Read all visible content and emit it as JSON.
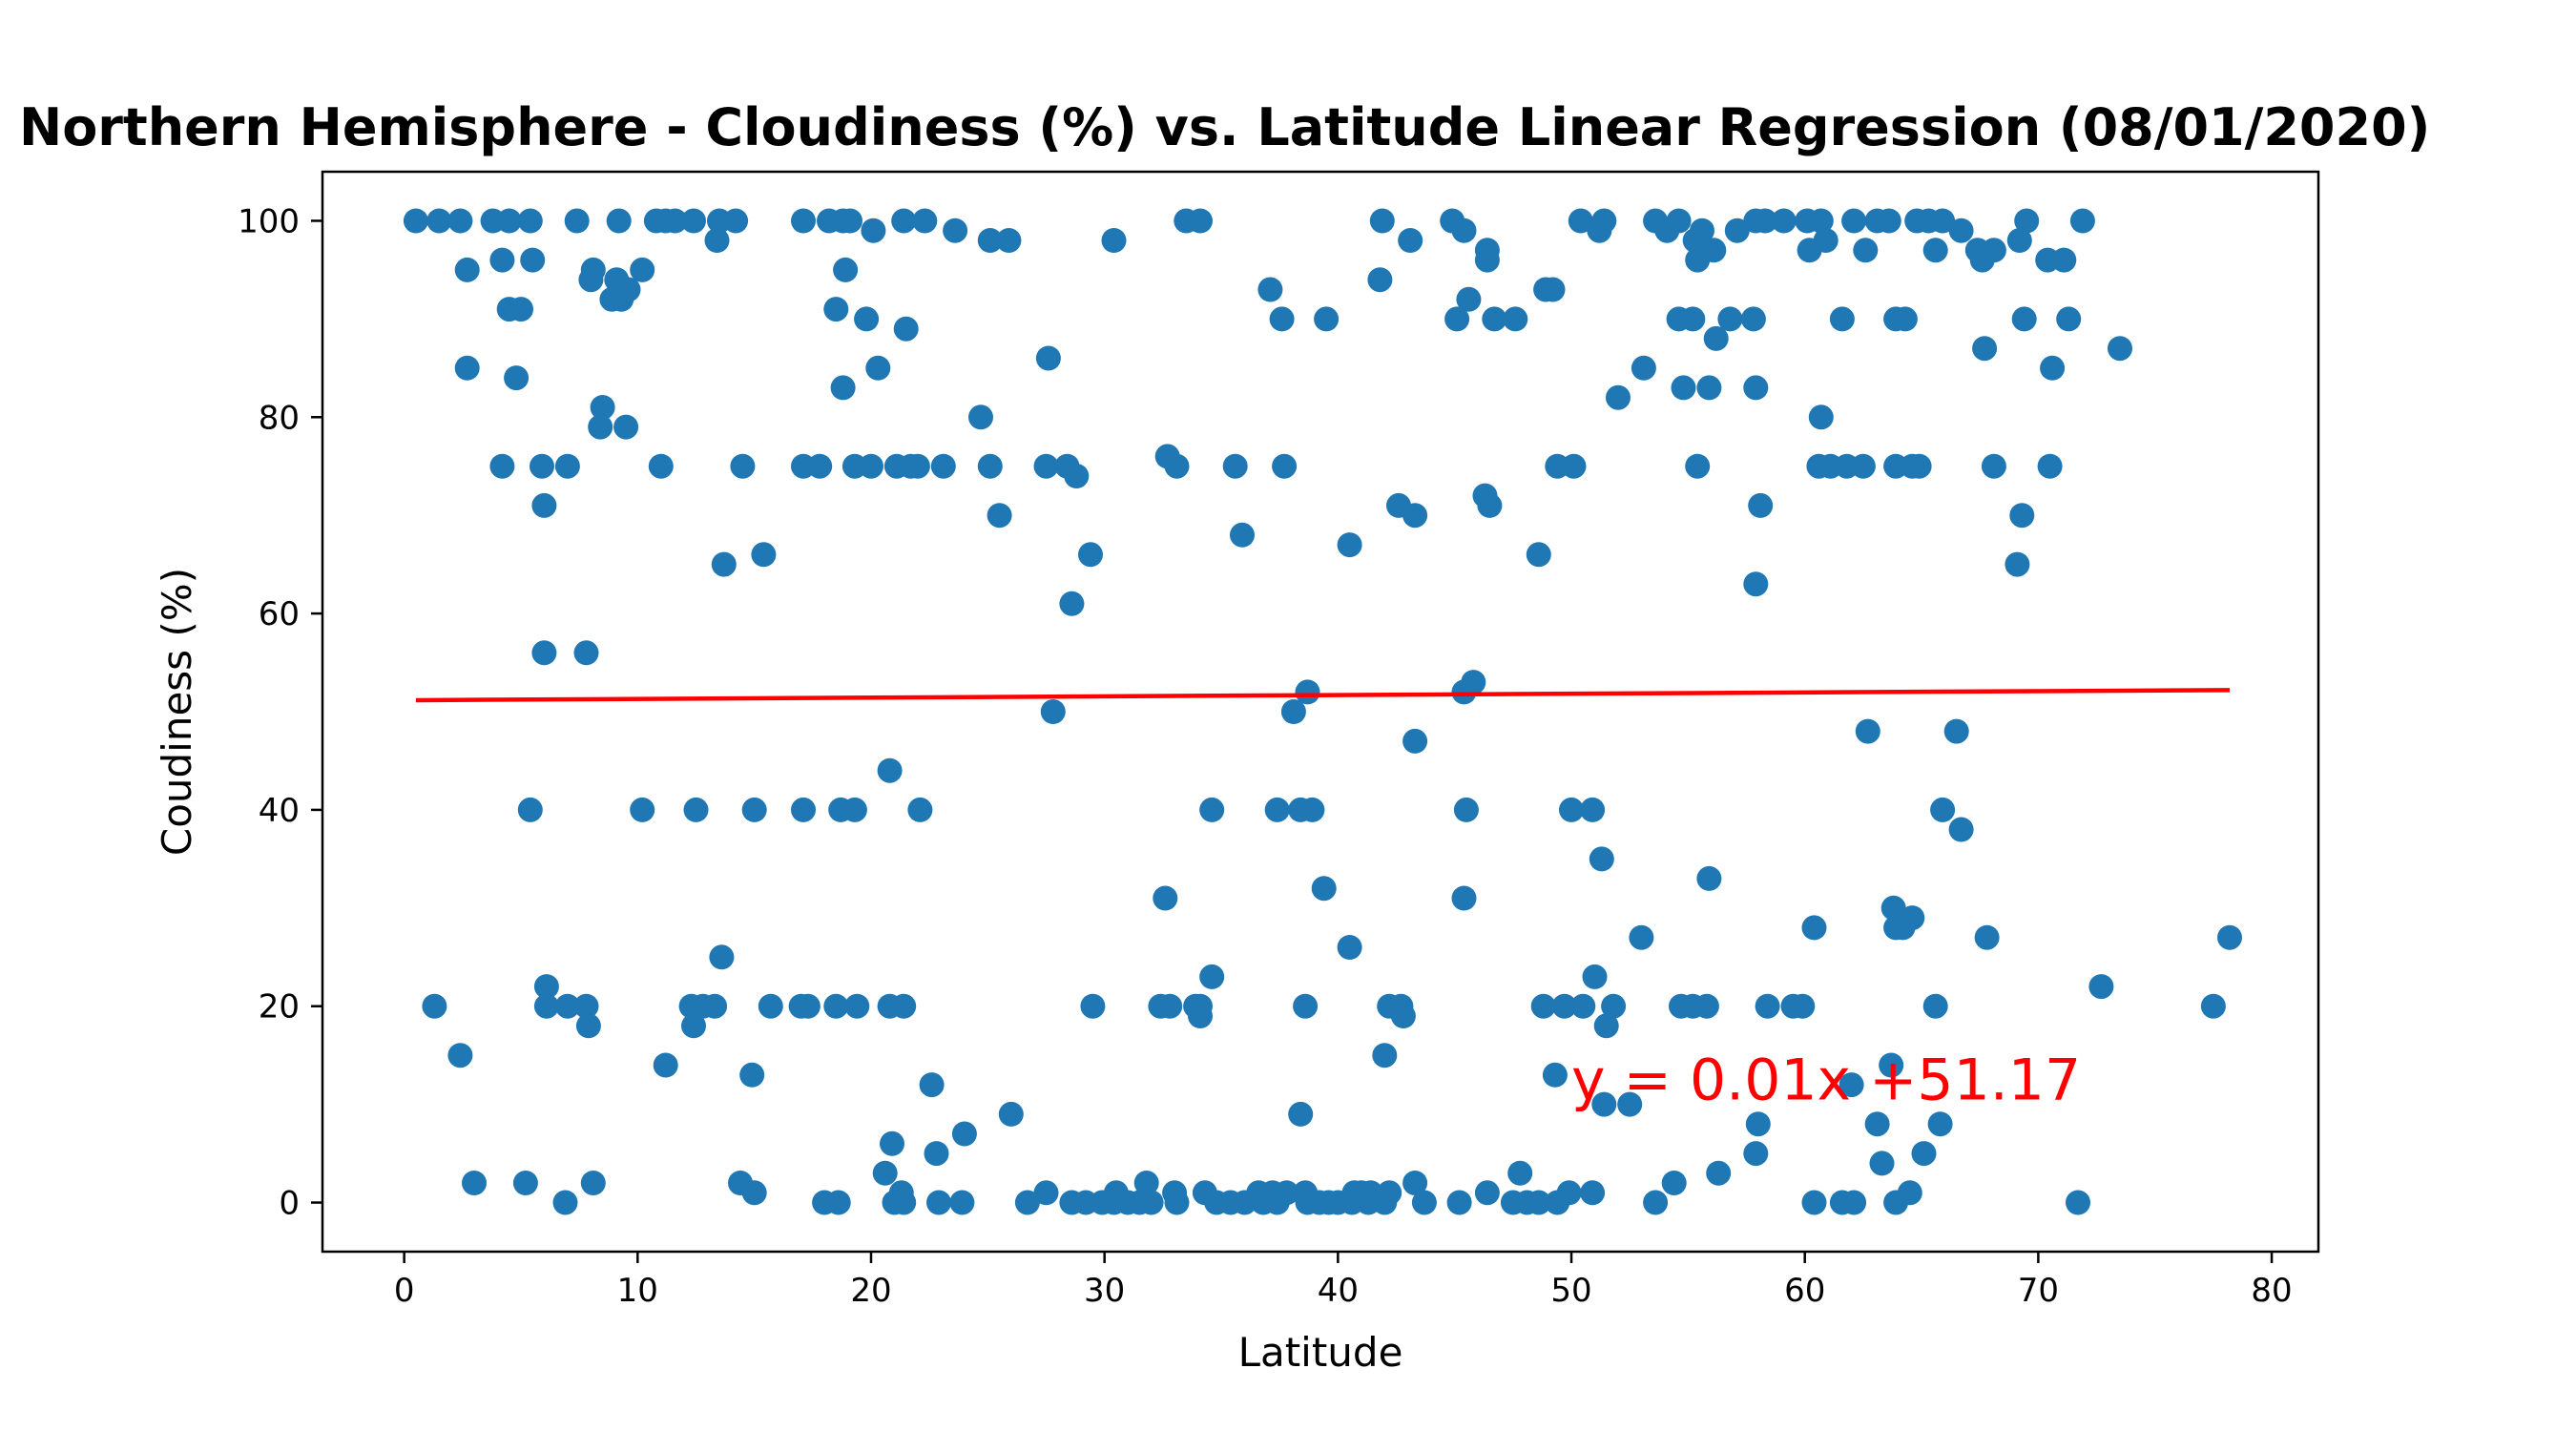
{
  "chart_data": {
    "type": "scatter",
    "title": "Northern Hemisphere - Cloudiness (%) vs. Latitude Linear Regression (08/01/2020)",
    "xlabel": "Latitude",
    "ylabel": "Coudiness (%)",
    "xlim": [
      -3.5,
      82
    ],
    "ylim": [
      -5,
      105
    ],
    "xticks": [
      0,
      10,
      20,
      30,
      40,
      50,
      60,
      70,
      80
    ],
    "yticks": [
      0,
      20,
      40,
      60,
      80,
      100
    ],
    "grid": false,
    "point_color": "#1f77b4",
    "regression": {
      "equation": "y = 0.01x +51.17",
      "color": "#ff0000",
      "x": [
        0.5,
        78.2
      ],
      "y": [
        51.17,
        52.2
      ]
    },
    "points": [
      [
        0.5,
        100
      ],
      [
        1.5,
        100
      ],
      [
        2.4,
        100
      ],
      [
        3.8,
        100
      ],
      [
        4.5,
        100
      ],
      [
        5.4,
        100
      ],
      [
        7.4,
        100
      ],
      [
        9.2,
        100
      ],
      [
        10.8,
        100
      ],
      [
        11.2,
        100
      ],
      [
        11.6,
        100
      ],
      [
        12.4,
        100
      ],
      [
        13.5,
        100
      ],
      [
        14.2,
        100
      ],
      [
        17.1,
        100
      ],
      [
        18.2,
        100
      ],
      [
        18.8,
        100
      ],
      [
        19.1,
        100
      ],
      [
        21.4,
        100
      ],
      [
        22.3,
        100
      ],
      [
        33.5,
        100
      ],
      [
        34.1,
        100
      ],
      [
        41.9,
        100
      ],
      [
        44.9,
        100
      ],
      [
        50.4,
        100
      ],
      [
        51.4,
        100
      ],
      [
        53.6,
        100
      ],
      [
        54.6,
        100
      ],
      [
        57.9,
        100
      ],
      [
        58.3,
        100
      ],
      [
        59.1,
        100
      ],
      [
        60.1,
        100
      ],
      [
        60.7,
        100
      ],
      [
        62.1,
        100
      ],
      [
        63.1,
        100
      ],
      [
        63.6,
        100
      ],
      [
        64.8,
        100
      ],
      [
        65.3,
        100
      ],
      [
        65.9,
        100
      ],
      [
        69.5,
        100
      ],
      [
        71.9,
        100
      ],
      [
        13.4,
        98
      ],
      [
        25.1,
        98
      ],
      [
        25.9,
        98
      ],
      [
        30.4,
        98
      ],
      [
        43.1,
        98
      ],
      [
        55.3,
        98
      ],
      [
        60.9,
        98
      ],
      [
        69.2,
        98
      ],
      [
        23.6,
        99
      ],
      [
        20.1,
        99
      ],
      [
        45.4,
        99
      ],
      [
        51.2,
        99
      ],
      [
        54.1,
        99
      ],
      [
        55.6,
        99
      ],
      [
        57.1,
        99
      ],
      [
        66.7,
        99
      ],
      [
        2.7,
        95
      ],
      [
        8.1,
        95
      ],
      [
        10.2,
        95
      ],
      [
        18.9,
        95
      ],
      [
        4.2,
        96
      ],
      [
        5.5,
        96
      ],
      [
        46.4,
        96
      ],
      [
        55.4,
        96
      ],
      [
        67.6,
        96
      ],
      [
        70.4,
        96
      ],
      [
        71.1,
        96
      ],
      [
        46.4,
        97
      ],
      [
        56.1,
        97
      ],
      [
        60.2,
        97
      ],
      [
        62.6,
        97
      ],
      [
        65.6,
        97
      ],
      [
        67.4,
        97
      ],
      [
        68.1,
        97
      ],
      [
        8.0,
        94
      ],
      [
        9.1,
        94
      ],
      [
        41.8,
        94
      ],
      [
        8.9,
        92
      ],
      [
        9.3,
        92
      ],
      [
        9.6,
        93
      ],
      [
        45.6,
        92
      ],
      [
        37.1,
        93
      ],
      [
        48.9,
        93
      ],
      [
        49.2,
        93
      ],
      [
        4.5,
        91
      ],
      [
        5.0,
        91
      ],
      [
        18.5,
        91
      ],
      [
        56.2,
        88
      ],
      [
        19.8,
        90
      ],
      [
        37.6,
        90
      ],
      [
        39.5,
        90
      ],
      [
        45.1,
        90
      ],
      [
        46.7,
        90
      ],
      [
        47.6,
        90
      ],
      [
        54.6,
        90
      ],
      [
        55.2,
        90
      ],
      [
        56.8,
        90
      ],
      [
        57.8,
        90
      ],
      [
        61.6,
        90
      ],
      [
        63.9,
        90
      ],
      [
        64.3,
        90
      ],
      [
        69.4,
        90
      ],
      [
        71.3,
        90
      ],
      [
        21.5,
        89
      ],
      [
        2.7,
        85
      ],
      [
        20.3,
        85
      ],
      [
        27.6,
        86
      ],
      [
        53.1,
        85
      ],
      [
        70.6,
        85
      ],
      [
        67.7,
        87
      ],
      [
        73.5,
        87
      ],
      [
        4.8,
        84
      ],
      [
        18.8,
        83
      ],
      [
        54.8,
        83
      ],
      [
        55.9,
        83
      ],
      [
        57.9,
        83
      ],
      [
        52.0,
        82
      ],
      [
        8.5,
        81
      ],
      [
        24.7,
        80
      ],
      [
        60.7,
        80
      ],
      [
        8.4,
        79
      ],
      [
        9.5,
        79
      ],
      [
        4.2,
        75
      ],
      [
        5.9,
        75
      ],
      [
        7.0,
        75
      ],
      [
        11.0,
        75
      ],
      [
        14.5,
        75
      ],
      [
        17.1,
        75
      ],
      [
        17.8,
        75
      ],
      [
        19.3,
        75
      ],
      [
        20.0,
        75
      ],
      [
        21.1,
        75
      ],
      [
        21.7,
        75
      ],
      [
        22.0,
        75
      ],
      [
        23.1,
        75
      ],
      [
        25.1,
        75
      ],
      [
        27.5,
        75
      ],
      [
        28.4,
        75
      ],
      [
        33.1,
        75
      ],
      [
        35.6,
        75
      ],
      [
        37.7,
        75
      ],
      [
        49.4,
        75
      ],
      [
        50.1,
        75
      ],
      [
        55.4,
        75
      ],
      [
        60.6,
        75
      ],
      [
        61.1,
        75
      ],
      [
        61.8,
        75
      ],
      [
        62.5,
        75
      ],
      [
        63.9,
        75
      ],
      [
        64.6,
        75
      ],
      [
        64.9,
        75
      ],
      [
        68.1,
        75
      ],
      [
        70.5,
        75
      ],
      [
        32.7,
        76
      ],
      [
        28.8,
        74
      ],
      [
        46.3,
        72
      ],
      [
        42.6,
        71
      ],
      [
        46.5,
        71
      ],
      [
        58.1,
        71
      ],
      [
        6.0,
        71
      ],
      [
        25.5,
        70
      ],
      [
        43.3,
        70
      ],
      [
        69.3,
        70
      ],
      [
        35.9,
        68
      ],
      [
        40.5,
        67
      ],
      [
        15.4,
        66
      ],
      [
        29.4,
        66
      ],
      [
        48.6,
        66
      ],
      [
        13.7,
        65
      ],
      [
        69.1,
        65
      ],
      [
        57.9,
        63
      ],
      [
        28.6,
        61
      ],
      [
        6.0,
        56
      ],
      [
        7.8,
        56
      ],
      [
        45.8,
        53
      ],
      [
        38.7,
        52
      ],
      [
        45.4,
        52
      ],
      [
        27.8,
        50
      ],
      [
        38.1,
        50
      ],
      [
        62.7,
        48
      ],
      [
        66.5,
        48
      ],
      [
        43.3,
        47
      ],
      [
        20.8,
        44
      ],
      [
        5.4,
        40
      ],
      [
        10.2,
        40
      ],
      [
        12.5,
        40
      ],
      [
        15.0,
        40
      ],
      [
        17.1,
        40
      ],
      [
        18.7,
        40
      ],
      [
        19.3,
        40
      ],
      [
        22.1,
        40
      ],
      [
        34.6,
        40
      ],
      [
        37.4,
        40
      ],
      [
        38.4,
        40
      ],
      [
        38.9,
        40
      ],
      [
        45.5,
        40
      ],
      [
        50.0,
        40
      ],
      [
        50.9,
        40
      ],
      [
        65.9,
        40
      ],
      [
        66.7,
        38
      ],
      [
        51.3,
        35
      ],
      [
        55.9,
        33
      ],
      [
        39.4,
        32
      ],
      [
        32.6,
        31
      ],
      [
        45.4,
        31
      ],
      [
        63.8,
        30
      ],
      [
        64.6,
        29
      ],
      [
        63.9,
        28
      ],
      [
        64.2,
        28
      ],
      [
        60.4,
        28
      ],
      [
        53.0,
        27
      ],
      [
        67.8,
        27
      ],
      [
        78.2,
        27
      ],
      [
        40.5,
        26
      ],
      [
        13.6,
        25
      ],
      [
        34.6,
        23
      ],
      [
        51.0,
        23
      ],
      [
        6.1,
        22
      ],
      [
        72.7,
        22
      ],
      [
        1.3,
        20
      ],
      [
        6.1,
        20
      ],
      [
        7.0,
        20
      ],
      [
        7.8,
        20
      ],
      [
        12.3,
        20
      ],
      [
        12.8,
        20
      ],
      [
        13.3,
        20
      ],
      [
        15.7,
        20
      ],
      [
        17.0,
        20
      ],
      [
        17.3,
        20
      ],
      [
        18.5,
        20
      ],
      [
        19.4,
        20
      ],
      [
        20.8,
        20
      ],
      [
        21.4,
        20
      ],
      [
        29.5,
        20
      ],
      [
        32.4,
        20
      ],
      [
        32.8,
        20
      ],
      [
        33.9,
        20
      ],
      [
        34.1,
        20
      ],
      [
        38.6,
        20
      ],
      [
        42.2,
        20
      ],
      [
        42.7,
        20
      ],
      [
        48.8,
        20
      ],
      [
        49.7,
        20
      ],
      [
        50.5,
        20
      ],
      [
        51.8,
        20
      ],
      [
        54.7,
        20
      ],
      [
        55.2,
        20
      ],
      [
        55.8,
        20
      ],
      [
        58.4,
        20
      ],
      [
        59.5,
        20
      ],
      [
        59.9,
        20
      ],
      [
        65.6,
        20
      ],
      [
        77.5,
        20
      ],
      [
        34.1,
        19
      ],
      [
        42.8,
        19
      ],
      [
        7.9,
        18
      ],
      [
        12.4,
        18
      ],
      [
        51.5,
        18
      ],
      [
        2.4,
        15
      ],
      [
        42.0,
        15
      ],
      [
        11.2,
        14
      ],
      [
        63.7,
        14
      ],
      [
        14.9,
        13
      ],
      [
        49.3,
        13
      ],
      [
        22.6,
        12
      ],
      [
        62.0,
        12
      ],
      [
        51.4,
        10
      ],
      [
        52.5,
        10
      ],
      [
        38.4,
        9
      ],
      [
        26.0,
        9
      ],
      [
        58.0,
        8
      ],
      [
        63.1,
        8
      ],
      [
        65.8,
        8
      ],
      [
        24.0,
        7
      ],
      [
        20.9,
        6
      ],
      [
        22.8,
        5
      ],
      [
        57.9,
        5
      ],
      [
        65.1,
        5
      ],
      [
        63.3,
        4
      ],
      [
        20.6,
        3
      ],
      [
        47.8,
        3
      ],
      [
        56.3,
        3
      ],
      [
        3.0,
        2
      ],
      [
        5.2,
        2
      ],
      [
        8.1,
        2
      ],
      [
        14.4,
        2
      ],
      [
        31.8,
        2
      ],
      [
        43.3,
        2
      ],
      [
        54.4,
        2
      ],
      [
        15.0,
        1
      ],
      [
        21.3,
        1
      ],
      [
        27.5,
        1
      ],
      [
        30.5,
        1
      ],
      [
        33.0,
        1
      ],
      [
        34.3,
        1
      ],
      [
        36.6,
        1
      ],
      [
        37.2,
        1
      ],
      [
        37.8,
        1
      ],
      [
        38.6,
        1
      ],
      [
        40.7,
        1
      ],
      [
        41.0,
        1
      ],
      [
        41.4,
        1
      ],
      [
        42.2,
        1
      ],
      [
        46.4,
        1
      ],
      [
        49.9,
        1
      ],
      [
        50.9,
        1
      ],
      [
        64.5,
        1
      ],
      [
        6.9,
        0
      ],
      [
        18.0,
        0
      ],
      [
        18.6,
        0
      ],
      [
        21.0,
        0
      ],
      [
        21.4,
        0
      ],
      [
        22.9,
        0
      ],
      [
        23.9,
        0
      ],
      [
        26.7,
        0
      ],
      [
        28.6,
        0
      ],
      [
        29.2,
        0
      ],
      [
        29.9,
        0
      ],
      [
        30.4,
        0
      ],
      [
        31.0,
        0
      ],
      [
        31.5,
        0
      ],
      [
        32.0,
        0
      ],
      [
        33.1,
        0
      ],
      [
        34.8,
        0
      ],
      [
        35.4,
        0
      ],
      [
        36.0,
        0
      ],
      [
        36.8,
        0
      ],
      [
        37.4,
        0
      ],
      [
        38.7,
        0
      ],
      [
        39.2,
        0
      ],
      [
        39.6,
        0
      ],
      [
        40.0,
        0
      ],
      [
        40.6,
        0
      ],
      [
        41.3,
        0
      ],
      [
        42.0,
        0
      ],
      [
        43.7,
        0
      ],
      [
        45.2,
        0
      ],
      [
        47.5,
        0
      ],
      [
        48.1,
        0
      ],
      [
        48.6,
        0
      ],
      [
        49.4,
        0
      ],
      [
        53.6,
        0
      ],
      [
        60.4,
        0
      ],
      [
        61.6,
        0
      ],
      [
        62.1,
        0
      ],
      [
        63.9,
        0
      ],
      [
        71.7,
        0
      ]
    ]
  }
}
